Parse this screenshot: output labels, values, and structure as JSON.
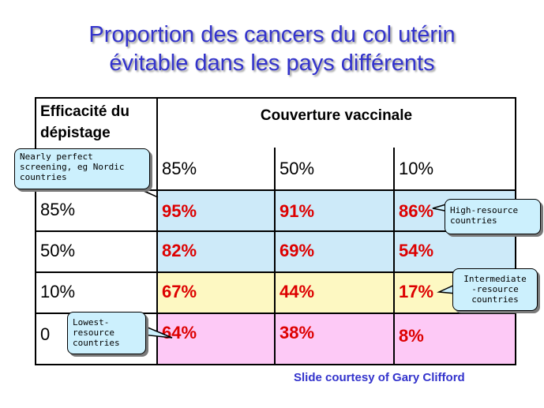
{
  "title": {
    "line1": "Proportion des cancers du col utérin",
    "line2": "évitable dans les pays différents"
  },
  "table": {
    "corner_header_line1": "Efficacité du",
    "corner_header_line2": "dépistage",
    "column_group_header": "Couverture vaccinale",
    "columns": [
      "85%",
      "50%",
      "10%"
    ],
    "rows": [
      {
        "label": "85%",
        "values": [
          "95%",
          "91%",
          "86%"
        ]
      },
      {
        "label": "50%",
        "values": [
          "82%",
          "69%",
          "54%"
        ]
      },
      {
        "label": "10%",
        "values": [
          "67%",
          "44%",
          "17%"
        ]
      },
      {
        "label": "0",
        "values": [
          "64%",
          "38%",
          "8%"
        ]
      }
    ]
  },
  "callouts": {
    "nordic": [
      "Nearly perfect",
      "screening, eg Nordic",
      "countries"
    ],
    "high": [
      "High-resource",
      "countries"
    ],
    "intermediate": [
      "Intermediate",
      "-resource",
      "countries"
    ],
    "lowest": [
      "Lowest-",
      "resource",
      "countries"
    ]
  },
  "credit": "Slide courtesy of Gary Clifford",
  "colors": {
    "title": "#3333cc",
    "highlight_value": "#dd0000",
    "band_high": "#cdeaf9",
    "band_intermediate": "#fdf8c2",
    "band_lowest": "#fdc9f6",
    "callout_fill": "#ccf0fd"
  }
}
